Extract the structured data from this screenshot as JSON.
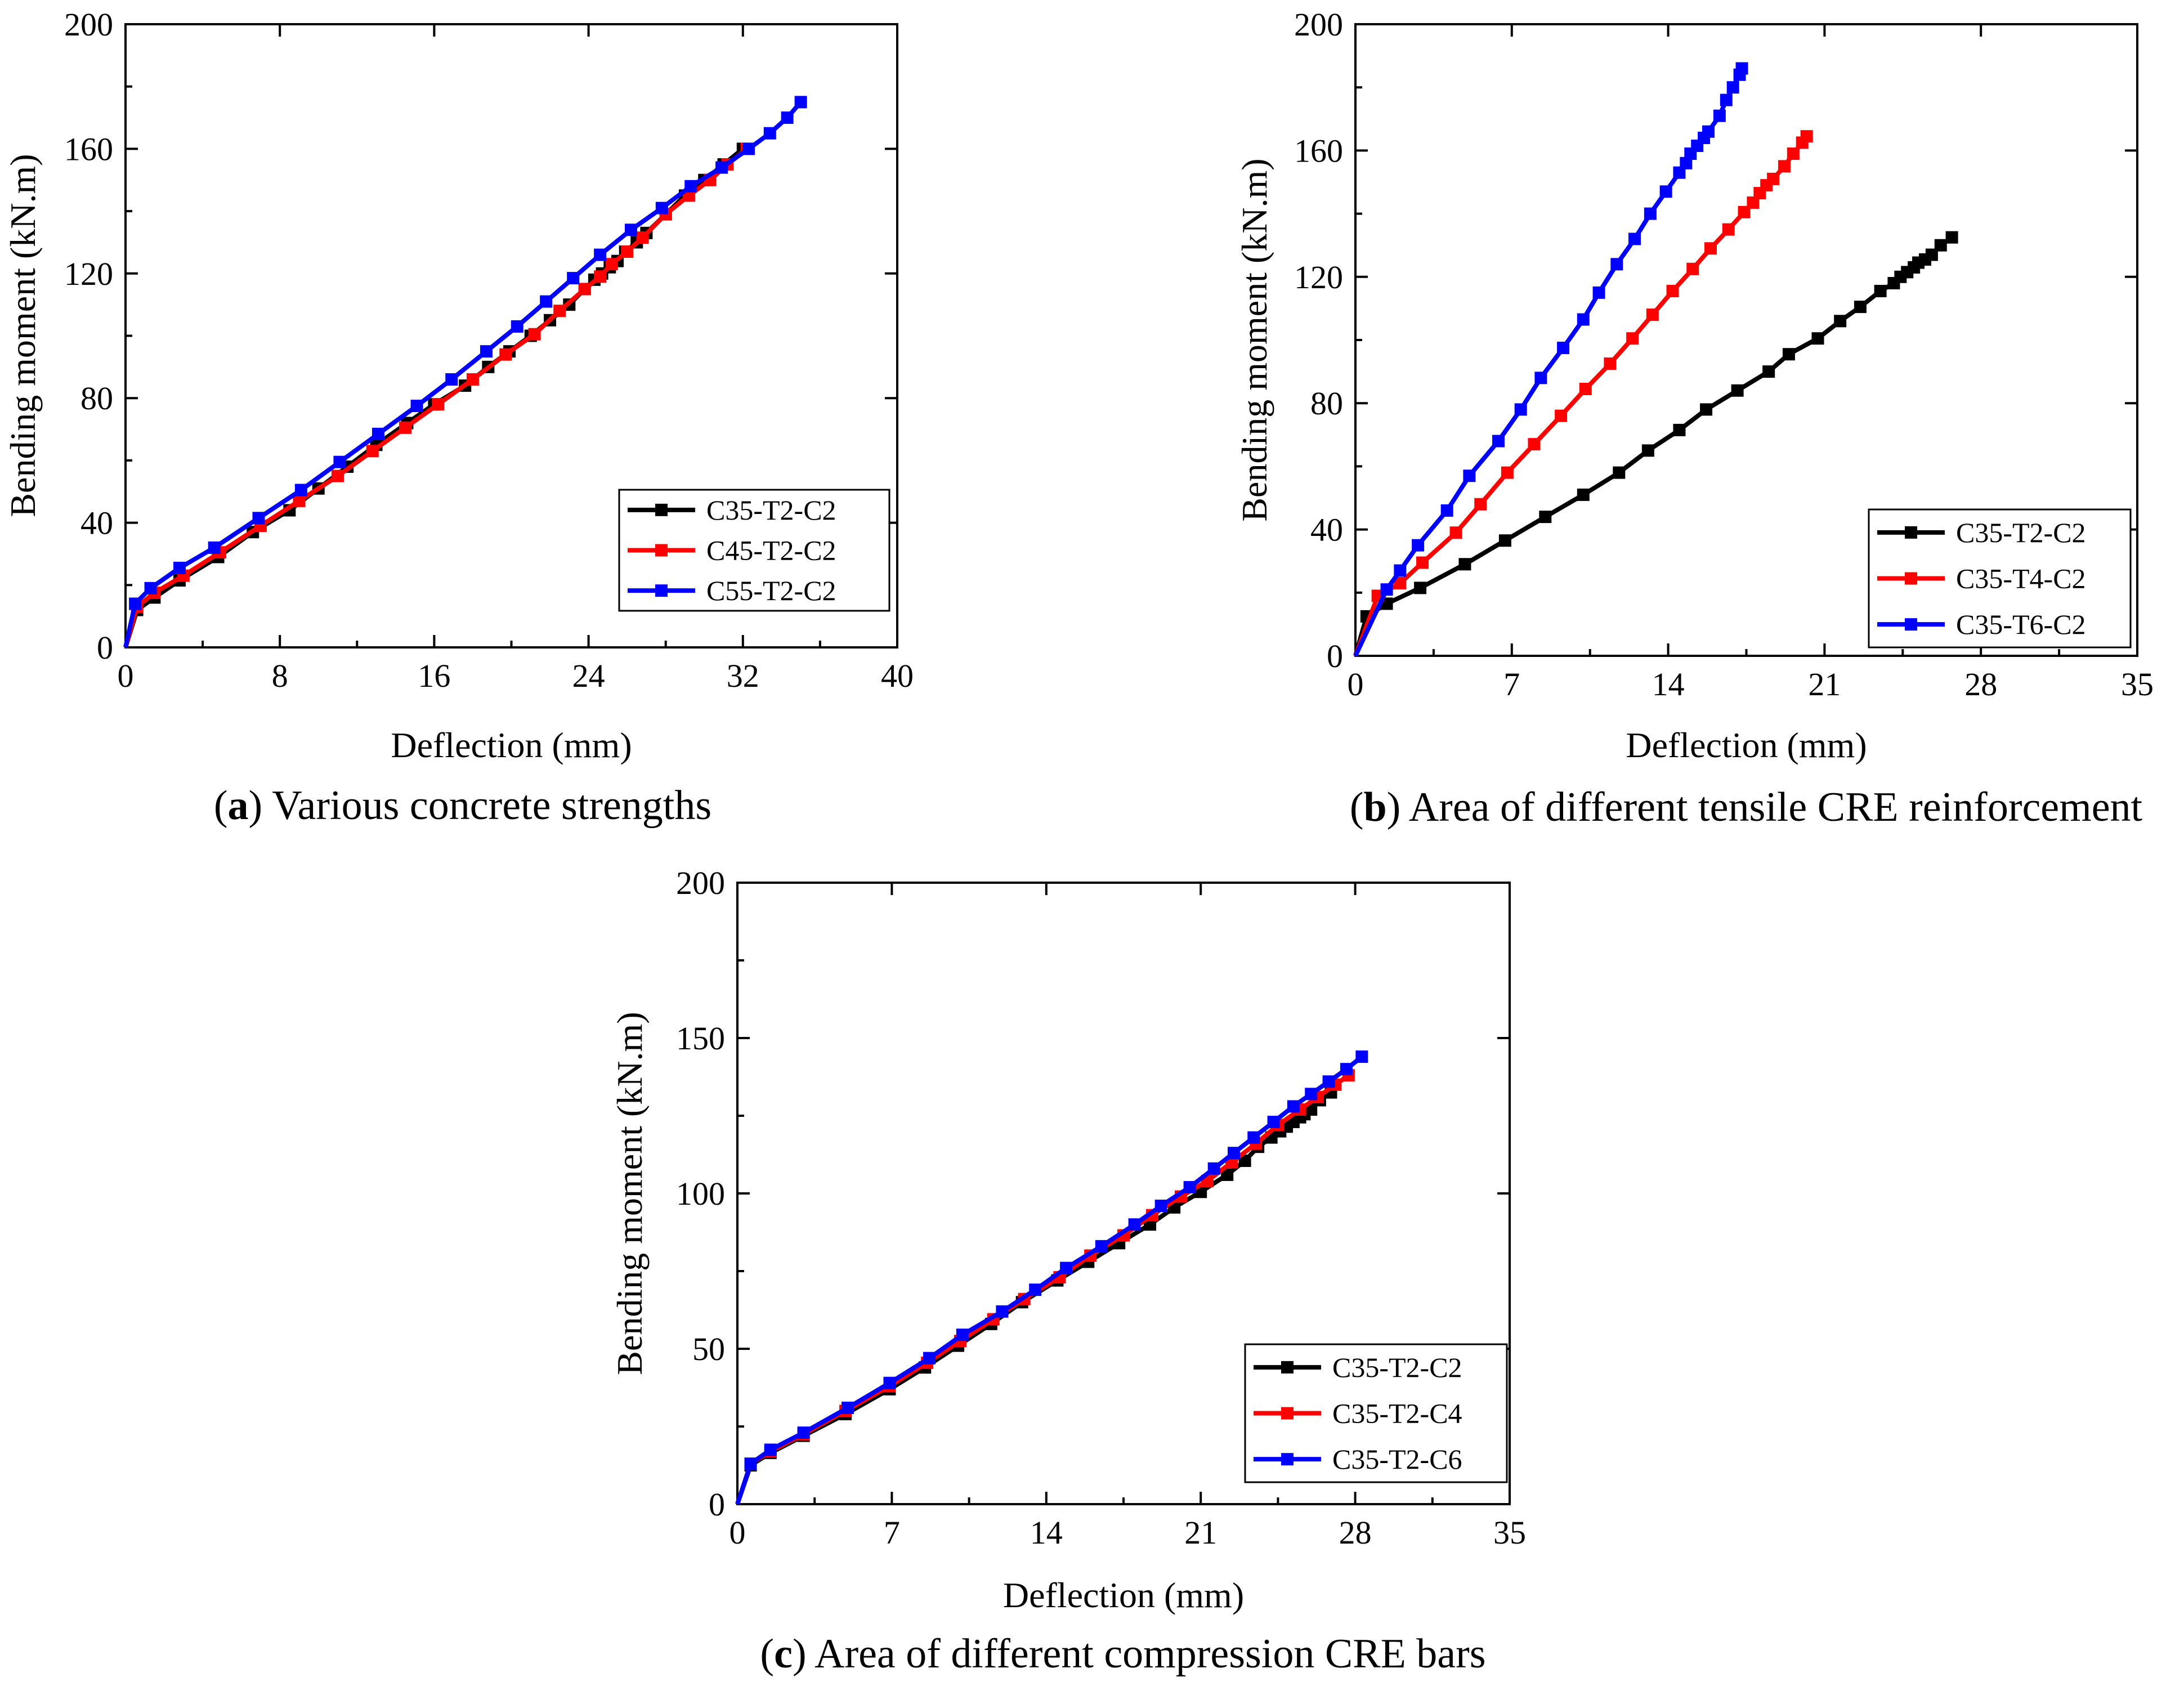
{
  "colors": {
    "series1": "#000000",
    "series2": "#ff0000",
    "series3": "#0000ff",
    "axis": "#000000",
    "background": "#ffffff"
  },
  "chart_data": [
    {
      "id": "a",
      "type": "line",
      "caption": {
        "letter": "a",
        "text": "Various concrete strengths"
      },
      "xlabel": "Deflection (mm)",
      "ylabel": "Bending moment (kN.m)",
      "xlim": [
        0,
        40
      ],
      "ylim": [
        0,
        200
      ],
      "xticks": [
        0,
        8,
        16,
        24,
        32,
        40
      ],
      "yticks": [
        0,
        40,
        80,
        120,
        160,
        200
      ],
      "legend_position": "lower-right",
      "series": [
        {
          "name": "C35-T2-C2",
          "color": "#000000",
          "points": [
            [
              0,
              0
            ],
            [
              0.6,
              12
            ],
            [
              1.5,
              16
            ],
            [
              2.8,
              21.5
            ],
            [
              4.8,
              29
            ],
            [
              6.6,
              37
            ],
            [
              8.5,
              44
            ],
            [
              10,
              51
            ],
            [
              11.5,
              58
            ],
            [
              13,
              65
            ],
            [
              14.6,
              72
            ],
            [
              16,
              78
            ],
            [
              17.6,
              84
            ],
            [
              18.8,
              90
            ],
            [
              19.9,
              95
            ],
            [
              21,
              100
            ],
            [
              22,
              105
            ],
            [
              23,
              110
            ],
            [
              23.8,
              115
            ],
            [
              24.3,
              118
            ],
            [
              24.7,
              120
            ],
            [
              25.1,
              122
            ],
            [
              25.5,
              124
            ],
            [
              25.9,
              127
            ],
            [
              26.5,
              130
            ],
            [
              27,
              133
            ],
            [
              28,
              139
            ],
            [
              29,
              145
            ],
            [
              30,
              150
            ],
            [
              31,
              155
            ],
            [
              32,
              160
            ]
          ]
        },
        {
          "name": "C45-T2-C2",
          "color": "#ff0000",
          "points": [
            [
              0,
              0
            ],
            [
              0.6,
              13
            ],
            [
              1.5,
              17.5
            ],
            [
              3,
              23
            ],
            [
              4.9,
              30.5
            ],
            [
              7,
              39
            ],
            [
              9,
              47
            ],
            [
              11,
              55
            ],
            [
              12.8,
              63
            ],
            [
              14.5,
              70.5
            ],
            [
              16.2,
              78
            ],
            [
              18,
              86
            ],
            [
              19.7,
              94
            ],
            [
              21.2,
              100.5
            ],
            [
              22.5,
              108
            ],
            [
              23.8,
              115
            ],
            [
              24.6,
              119
            ],
            [
              25.2,
              123
            ],
            [
              26,
              127
            ],
            [
              26.8,
              131.5
            ],
            [
              28,
              139
            ],
            [
              29.2,
              145
            ],
            [
              30.3,
              150
            ],
            [
              31.2,
              155
            ],
            [
              32.2,
              160
            ]
          ]
        },
        {
          "name": "C55-T2-C2",
          "color": "#0000ff",
          "points": [
            [
              0,
              0
            ],
            [
              0.5,
              14
            ],
            [
              1.3,
              19
            ],
            [
              2.8,
              25.5
            ],
            [
              4.6,
              32
            ],
            [
              6.9,
              41.5
            ],
            [
              9.1,
              50.5
            ],
            [
              11.1,
              59.5
            ],
            [
              13.1,
              68.5
            ],
            [
              15.1,
              77.5
            ],
            [
              16.9,
              86
            ],
            [
              18.7,
              95
            ],
            [
              20.3,
              103
            ],
            [
              21.8,
              111
            ],
            [
              23.2,
              118.5
            ],
            [
              24.6,
              126
            ],
            [
              26.2,
              134
            ],
            [
              27.8,
              141
            ],
            [
              29.3,
              148
            ],
            [
              30.9,
              154
            ],
            [
              32.3,
              160
            ],
            [
              33.4,
              165
            ],
            [
              34.3,
              170
            ],
            [
              35,
              175
            ]
          ]
        }
      ]
    },
    {
      "id": "b",
      "type": "line",
      "caption": {
        "letter": "b",
        "text": "Area of different tensile CRE reinforcement"
      },
      "xlabel": "Deflection (mm)",
      "ylabel": "Bending moment (kN.m)",
      "xlim": [
        0,
        35
      ],
      "ylim": [
        0,
        200
      ],
      "xticks": [
        0,
        7,
        14,
        21,
        28,
        35
      ],
      "yticks": [
        0,
        40,
        80,
        120,
        160,
        200
      ],
      "legend_position": "lower-right",
      "series": [
        {
          "name": "C35-T2-C2",
          "color": "#000000",
          "points": [
            [
              0,
              0
            ],
            [
              0.5,
              12.5
            ],
            [
              1.4,
              16.5
            ],
            [
              2.9,
              21.5
            ],
            [
              4.9,
              29
            ],
            [
              6.7,
              36.5
            ],
            [
              8.5,
              44
            ],
            [
              10.2,
              51
            ],
            [
              11.8,
              58
            ],
            [
              13.1,
              65
            ],
            [
              14.5,
              71.5
            ],
            [
              15.7,
              78
            ],
            [
              17.1,
              84
            ],
            [
              18.5,
              90
            ],
            [
              19.4,
              95.5
            ],
            [
              20.7,
              100.5
            ],
            [
              21.7,
              106
            ],
            [
              22.6,
              110.5
            ],
            [
              23.5,
              115.5
            ],
            [
              24.1,
              118
            ],
            [
              24.4,
              120
            ],
            [
              24.7,
              121.5
            ],
            [
              25,
              123
            ],
            [
              25.2,
              124.5
            ],
            [
              25.5,
              125.5
            ],
            [
              25.8,
              127
            ],
            [
              26.2,
              130
            ],
            [
              26.7,
              132.5
            ]
          ]
        },
        {
          "name": "C35-T4-C2",
          "color": "#ff0000",
          "points": [
            [
              0,
              0
            ],
            [
              1,
              19
            ],
            [
              2,
              23
            ],
            [
              3,
              29.5
            ],
            [
              4.5,
              39
            ],
            [
              5.6,
              48
            ],
            [
              6.8,
              58
            ],
            [
              8,
              67
            ],
            [
              9.2,
              76
            ],
            [
              10.3,
              84.5
            ],
            [
              11.4,
              92.5
            ],
            [
              12.4,
              100.5
            ],
            [
              13.3,
              108
            ],
            [
              14.2,
              115.5
            ],
            [
              15.1,
              122.5
            ],
            [
              15.9,
              129
            ],
            [
              16.7,
              135
            ],
            [
              17.4,
              140.5
            ],
            [
              17.8,
              143.5
            ],
            [
              18.1,
              146.5
            ],
            [
              18.4,
              149
            ],
            [
              18.7,
              151
            ],
            [
              19.2,
              155
            ],
            [
              19.6,
              159
            ],
            [
              20,
              162.5
            ],
            [
              20.2,
              164.5
            ]
          ]
        },
        {
          "name": "C35-T6-C2",
          "color": "#0000ff",
          "points": [
            [
              0,
              0
            ],
            [
              1.4,
              21
            ],
            [
              2,
              27
            ],
            [
              2.8,
              35
            ],
            [
              4.1,
              46
            ],
            [
              5.1,
              57
            ],
            [
              6.4,
              68
            ],
            [
              7.4,
              78
            ],
            [
              8.3,
              88
            ],
            [
              9.3,
              97.5
            ],
            [
              10.2,
              106.5
            ],
            [
              10.9,
              115
            ],
            [
              11.7,
              124
            ],
            [
              12.5,
              132
            ],
            [
              13.2,
              140
            ],
            [
              13.9,
              147
            ],
            [
              14.5,
              153
            ],
            [
              14.8,
              156
            ],
            [
              15,
              159
            ],
            [
              15.3,
              161.5
            ],
            [
              15.6,
              164
            ],
            [
              15.8,
              166
            ],
            [
              16.3,
              171
            ],
            [
              16.6,
              176
            ],
            [
              16.9,
              180
            ],
            [
              17.2,
              184
            ],
            [
              17.3,
              186
            ]
          ]
        }
      ]
    },
    {
      "id": "c",
      "type": "line",
      "caption": {
        "letter": "c",
        "text": "Area of different compression CRE bars"
      },
      "xlabel": "Deflection (mm)",
      "ylabel": "Bending moment (kN.m)",
      "xlim": [
        0,
        35
      ],
      "ylim": [
        0,
        200
      ],
      "xticks": [
        0,
        7,
        14,
        21,
        28,
        35
      ],
      "yticks": [
        0,
        50,
        100,
        150,
        200
      ],
      "legend_position": "lower-right",
      "series": [
        {
          "name": "C35-T2-C2",
          "color": "#000000",
          "points": [
            [
              0,
              0
            ],
            [
              0.6,
              12.5
            ],
            [
              1.5,
              16.5
            ],
            [
              3,
              22
            ],
            [
              4.9,
              29
            ],
            [
              6.9,
              37
            ],
            [
              8.5,
              44
            ],
            [
              10,
              51
            ],
            [
              11.5,
              58
            ],
            [
              12.9,
              65
            ],
            [
              14.5,
              72
            ],
            [
              15.9,
              78
            ],
            [
              17.3,
              84
            ],
            [
              18.7,
              90
            ],
            [
              19.8,
              95.5
            ],
            [
              21,
              100.5
            ],
            [
              22.2,
              106
            ],
            [
              23,
              110.5
            ],
            [
              23.6,
              115
            ],
            [
              24.2,
              118
            ],
            [
              24.6,
              120
            ],
            [
              24.9,
              121.5
            ],
            [
              25.2,
              123
            ],
            [
              25.5,
              124.5
            ],
            [
              25.7,
              125.5
            ],
            [
              26,
              127
            ],
            [
              26.4,
              130
            ],
            [
              26.9,
              132.5
            ]
          ]
        },
        {
          "name": "C35-T2-C4",
          "color": "#ff0000",
          "points": [
            [
              0,
              0
            ],
            [
              0.6,
              13
            ],
            [
              1.5,
              17
            ],
            [
              3,
              22.5
            ],
            [
              4.9,
              30
            ],
            [
              6.9,
              38
            ],
            [
              8.6,
              45.5
            ],
            [
              10.1,
              52.5
            ],
            [
              11.6,
              59.5
            ],
            [
              13,
              66
            ],
            [
              14.6,
              73
            ],
            [
              16,
              80
            ],
            [
              17.5,
              86.5
            ],
            [
              18.8,
              93
            ],
            [
              20.1,
              99
            ],
            [
              21.3,
              104
            ],
            [
              22.4,
              110
            ],
            [
              23.5,
              116
            ],
            [
              24.5,
              122
            ],
            [
              25.5,
              127
            ],
            [
              26.3,
              131
            ],
            [
              27.1,
              135
            ],
            [
              27.7,
              138
            ]
          ]
        },
        {
          "name": "C35-T2-C6",
          "color": "#0000ff",
          "points": [
            [
              0,
              0
            ],
            [
              0.6,
              13
            ],
            [
              1.5,
              17.5
            ],
            [
              3,
              23
            ],
            [
              5,
              31
            ],
            [
              6.9,
              39
            ],
            [
              8.7,
              47
            ],
            [
              10.2,
              54.5
            ],
            [
              12,
              62
            ],
            [
              13.5,
              69
            ],
            [
              14.9,
              76
            ],
            [
              16.5,
              83
            ],
            [
              18,
              90
            ],
            [
              19.2,
              96
            ],
            [
              20.5,
              102
            ],
            [
              21.6,
              108
            ],
            [
              22.5,
              113
            ],
            [
              23.4,
              118
            ],
            [
              24.3,
              123
            ],
            [
              25.2,
              128
            ],
            [
              26,
              132
            ],
            [
              26.8,
              136
            ],
            [
              27.6,
              140
            ],
            [
              28.3,
              144
            ]
          ]
        }
      ]
    }
  ]
}
